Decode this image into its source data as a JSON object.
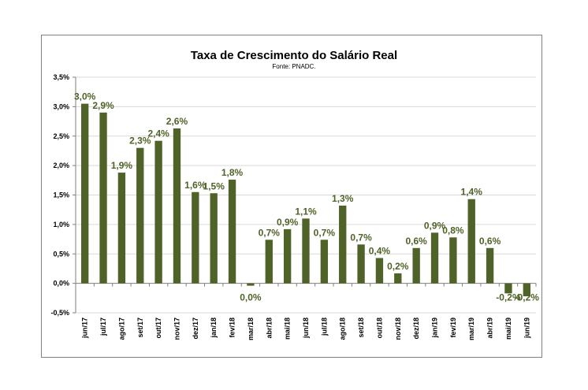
{
  "chart_data": {
    "type": "bar",
    "title": "Taxa de Crescimento do Salário Real",
    "subtitle": "Fonte: PNADC.",
    "xlabel": "",
    "ylabel": "",
    "ylim": [
      -0.5,
      3.5
    ],
    "yticks": [
      "3,5%",
      "3,0%",
      "2,5%",
      "2,0%",
      "1,5%",
      "1,0%",
      "0,5%",
      "0,0%",
      "-0,5%"
    ],
    "ytick_values": [
      3.5,
      3.0,
      2.5,
      2.0,
      1.5,
      1.0,
      0.5,
      0.0,
      -0.5
    ],
    "grid": true,
    "bar_color": "#4f6228",
    "label_color": "#4f6228",
    "categories": [
      "jun/17",
      "jul/17",
      "ago/17",
      "set/17",
      "out/17",
      "nov/17",
      "dez/17",
      "jan/18",
      "fev/18",
      "mar/18",
      "abr/18",
      "mai/18",
      "jun/18",
      "jul/18",
      "ago/18",
      "set/18",
      "out/18",
      "nov/18",
      "dez/18",
      "jan/19",
      "fev/19",
      "mar/19",
      "abr/19",
      "mai/19",
      "jun/19"
    ],
    "values": [
      3.05,
      2.9,
      1.88,
      2.3,
      2.42,
      2.63,
      1.55,
      1.53,
      1.76,
      -0.04,
      0.74,
      0.92,
      1.1,
      0.74,
      1.32,
      0.66,
      0.43,
      0.17,
      0.6,
      0.86,
      0.78,
      1.43,
      0.6,
      -0.17,
      -0.22
    ],
    "data_labels": [
      "3,0%",
      "2,9%",
      "1,9%",
      "2,3%",
      "2,4%",
      "2,6%",
      "1,6%",
      "1,5%",
      "1,8%",
      "0,0%",
      "0,7%",
      "0,9%",
      "1,1%",
      "0,7%",
      "1,3%",
      "0,7%",
      "0,4%",
      "0,2%",
      "0,6%",
      "0,9%",
      "0,8%",
      "1,4%",
      "0,6%",
      "-0,2%",
      "-0,2%"
    ]
  }
}
